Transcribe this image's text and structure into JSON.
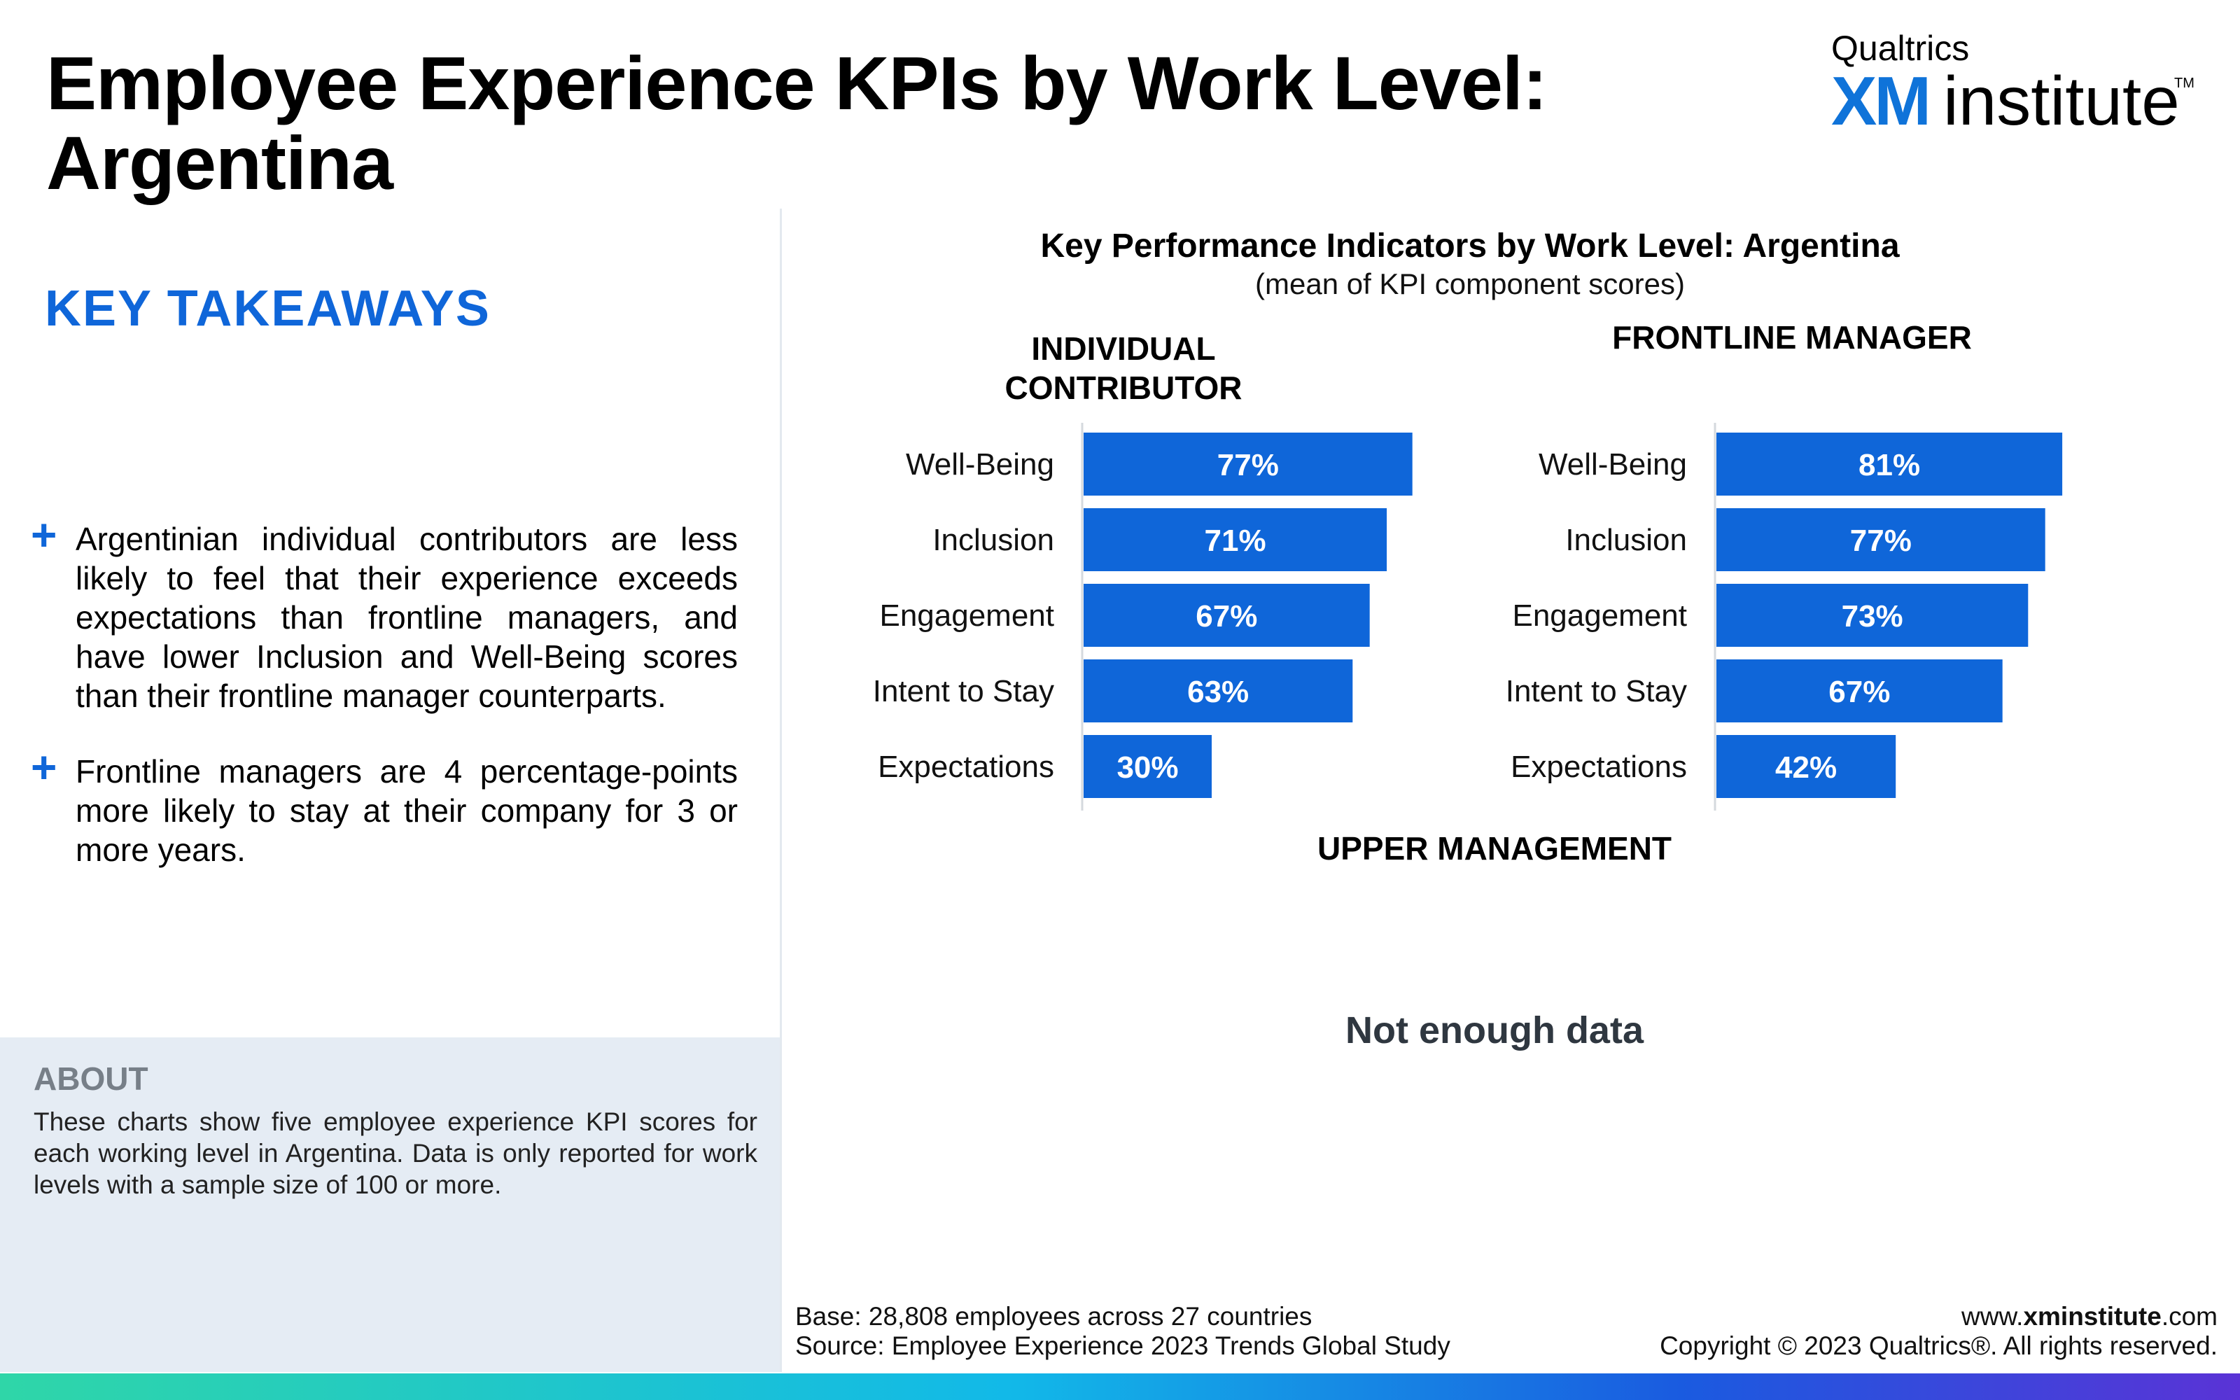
{
  "title": "Employee Experience KPIs by Work Level: Argentina",
  "logo": {
    "brand": "Qualtrics",
    "xm": "XM",
    "institute": "institute",
    "tm": "TM"
  },
  "takeaways": {
    "heading": "KEY TAKEAWAYS",
    "bullets": [
      "Argentinian individual contributors are less likely to feel that their experience exceeds expectations than frontline managers, and have lower Inclusion and Well-Being scores than their frontline manager counterparts.",
      "Frontline managers are 4 percentage-points more likely to stay at their company for 3 or more years."
    ],
    "bullet_symbol": "+"
  },
  "about": {
    "heading": "ABOUT",
    "text": "These charts show five employee experience KPI scores for each working level in Argentina. Data is only reported for work levels with a sample size of 100 or more."
  },
  "chart": {
    "title": "Key Performance Indicators by Work Level: Argentina",
    "subtitle": "(mean of KPI component scores)",
    "no_data": "Not enough data",
    "panels": {
      "individual_contributor": "INDIVIDUAL CONTRIBUTOR",
      "frontline_manager": "FRONTLINE MANAGER",
      "upper_management": "UPPER MANAGEMENT"
    }
  },
  "chart_data": [
    {
      "type": "bar",
      "orientation": "horizontal",
      "title": "INDIVIDUAL CONTRIBUTOR",
      "categories": [
        "Well-Being",
        "Inclusion",
        "Engagement",
        "Intent to Stay",
        "Expectations"
      ],
      "values": [
        77,
        71,
        67,
        63,
        30
      ],
      "value_labels": [
        "77%",
        "71%",
        "67%",
        "63%",
        "30%"
      ],
      "xlim": [
        0,
        100
      ],
      "bar_color": "#0f66d9",
      "grid": false
    },
    {
      "type": "bar",
      "orientation": "horizontal",
      "title": "FRONTLINE MANAGER",
      "categories": [
        "Well-Being",
        "Inclusion",
        "Engagement",
        "Intent to Stay",
        "Expectations"
      ],
      "values": [
        81,
        77,
        73,
        67,
        42
      ],
      "value_labels": [
        "81%",
        "77%",
        "73%",
        "67%",
        "42%"
      ],
      "xlim": [
        0,
        100
      ],
      "bar_color": "#0f66d9",
      "grid": false
    }
  ],
  "footer": {
    "base": "Base: 28,808 employees across 27 countries",
    "source": "Source: Employee Experience 2023 Trends Global Study",
    "url_prefix": "www.",
    "url_bold": "xminstitute",
    "url_suffix": ".com",
    "copyright": "Copyright © 2023 Qualtrics®. All rights reserved."
  },
  "colors": {
    "accent": "#0f66d9",
    "about_bg": "#e5ecf4",
    "about_heading": "#777f88"
  }
}
